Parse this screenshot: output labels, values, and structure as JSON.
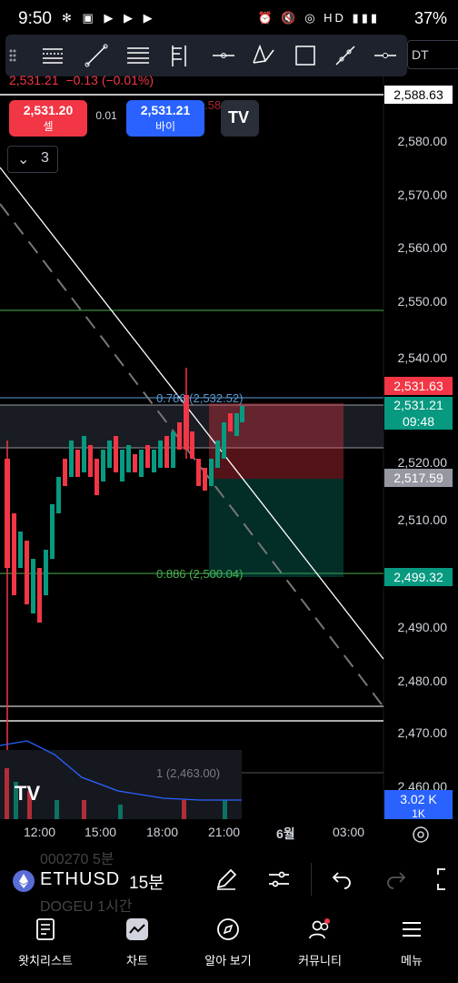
{
  "status_bar": {
    "time": "9:50",
    "battery": "37%"
  },
  "toolbar": {
    "symbol_tab": "DT"
  },
  "header": {
    "last_price": "2,531.21",
    "change": "−0.13 (−0.01%)",
    "sell": {
      "price": "2,531.20",
      "label": "셀"
    },
    "spread": "0.01",
    "buy": {
      "price": "2,531.21",
      "label": "바이"
    },
    "collapsed_count": "3",
    "partial_label": ".58"
  },
  "price_axis": {
    "ticks": [
      "2,580.00",
      "2,570.00",
      "2,560.00",
      "2,550.00",
      "2,540.00",
      "2,520.00",
      "2,510.00",
      "2,490.00",
      "2,480.00",
      "2,470.00",
      "2,460.00"
    ],
    "tags": {
      "top_level": "2,588.63",
      "ask": "2,531.63",
      "last": "2,531.21",
      "countdown": "09:48",
      "stop": "2,517.59",
      "target": "2,499.32",
      "volume": "3.02 K",
      "volume_extra": "1K"
    },
    "colors": {
      "red": "#f23645",
      "blue": "#2962ff",
      "teal": "#089981",
      "grey": "#787b86"
    }
  },
  "fib": {
    "level_0786": "0.786 (2,532.52)",
    "level_0886": "0.886 (2,500.04)",
    "level_1": "1 (2,463.00)"
  },
  "time_axis": {
    "ticks": [
      "12:00",
      "15:00",
      "18:00",
      "21:00",
      "6월",
      "03:00"
    ]
  },
  "symbol_row": {
    "ticker": "ETHUSD",
    "interval": "15분",
    "ghost_top": "000270   5분",
    "ghost_bottom": "DOGEU   1시간"
  },
  "nav": {
    "items": [
      {
        "label": "왓치리스트"
      },
      {
        "label": "차트"
      },
      {
        "label": "알아 보기"
      },
      {
        "label": "커뮤니티"
      },
      {
        "label": "메뉴"
      }
    ]
  }
}
